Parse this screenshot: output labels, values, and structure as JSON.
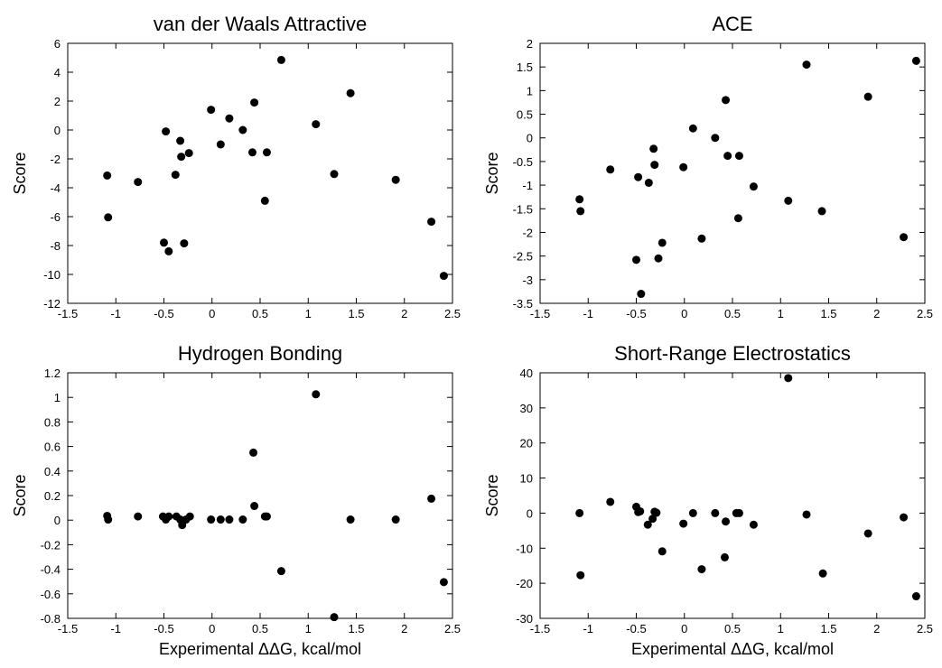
{
  "chart_data": [
    {
      "type": "scatter",
      "title": "van der Waals Attractive",
      "xlabel": "",
      "ylabel": "Score",
      "xlim": [
        -1.5,
        2.5
      ],
      "ylim": [
        -12,
        6
      ],
      "xticks": [
        "-1.5",
        "-1",
        "-0.5",
        "0",
        "0.5",
        "1",
        "1.5",
        "2",
        "2.5"
      ],
      "yticks": [
        "-12",
        "-10",
        "-8",
        "-6",
        "-4",
        "-2",
        "0",
        "2",
        "4",
        "6"
      ],
      "series": [
        {
          "x": [
            -1.09,
            -1.08,
            -0.77,
            -0.5,
            -0.48,
            -0.45,
            -0.38,
            -0.33,
            -0.32,
            -0.29,
            -0.24,
            -0.01,
            0.09,
            0.18,
            0.32,
            0.42,
            0.44,
            0.55,
            0.57,
            0.72,
            1.08,
            1.27,
            1.44,
            1.91,
            2.28,
            2.41
          ],
          "y": [
            -3.15,
            -6.05,
            -3.6,
            -7.8,
            -0.1,
            -8.4,
            -3.1,
            -0.75,
            -1.85,
            -7.85,
            -1.6,
            1.4,
            -1.0,
            0.8,
            0.0,
            -1.55,
            1.9,
            -4.9,
            -1.55,
            4.85,
            0.4,
            -3.05,
            2.55,
            -3.45,
            -6.35,
            -10.1
          ]
        }
      ]
    },
    {
      "type": "scatter",
      "title": "ACE",
      "xlabel": "",
      "ylabel": "Score",
      "xlim": [
        -1.5,
        2.5
      ],
      "ylim": [
        -3.5,
        2
      ],
      "xticks": [
        "-1.5",
        "-1",
        "-0.5",
        "0",
        "0.5",
        "1",
        "1.5",
        "2",
        "2.5"
      ],
      "yticks": [
        "-3.5",
        "-3",
        "-2.5",
        "-2",
        "-1.5",
        "-1",
        "-0.5",
        "0",
        "0.5",
        "1",
        "1.5",
        "2"
      ],
      "series": [
        {
          "x": [
            -1.09,
            -1.08,
            -0.77,
            -0.5,
            -0.48,
            -0.45,
            -0.37,
            -0.32,
            -0.31,
            -0.27,
            -0.23,
            -0.01,
            0.09,
            0.18,
            0.32,
            0.43,
            0.45,
            0.56,
            0.57,
            0.72,
            1.08,
            1.27,
            1.43,
            1.91,
            2.28,
            2.41
          ],
          "y": [
            -1.3,
            -1.55,
            -0.67,
            -2.58,
            -0.83,
            -3.3,
            -0.95,
            -0.23,
            -0.57,
            -2.55,
            -2.22,
            -0.62,
            0.2,
            -2.13,
            0.0,
            0.8,
            -0.38,
            -1.7,
            -0.38,
            -1.03,
            -1.33,
            1.55,
            -1.55,
            0.87,
            -2.1,
            1.63
          ]
        }
      ]
    },
    {
      "type": "scatter",
      "title": "Hydrogen Bonding",
      "xlabel": "Experimental ΔΔG, kcal/mol",
      "ylabel": "Score",
      "xlim": [
        -1.5,
        2.5
      ],
      "ylim": [
        -0.8,
        1.2
      ],
      "xticks": [
        "-1.5",
        "-1",
        "-0.5",
        "0",
        "0.5",
        "1",
        "1.5",
        "2",
        "2.5"
      ],
      "yticks": [
        "-0.8",
        "-0.6",
        "-0.4",
        "-0.2",
        "0",
        "0.2",
        "0.4",
        "0.6",
        "0.8",
        "1",
        "1.2"
      ],
      "series": [
        {
          "x": [
            -1.09,
            -1.08,
            -0.77,
            -0.51,
            -0.48,
            -0.45,
            -0.37,
            -0.33,
            -0.31,
            -0.27,
            -0.23,
            -0.01,
            0.09,
            0.18,
            0.32,
            0.43,
            0.44,
            0.55,
            0.57,
            0.72,
            1.08,
            1.27,
            1.44,
            1.91,
            2.28,
            2.41
          ],
          "y": [
            0.035,
            0.005,
            0.03,
            0.03,
            0.005,
            0.03,
            0.03,
            0.005,
            -0.04,
            0.005,
            0.03,
            0.005,
            0.005,
            0.005,
            0.005,
            0.55,
            0.115,
            0.03,
            0.03,
            -0.415,
            1.025,
            -0.79,
            0.005,
            0.005,
            0.175,
            -0.505
          ]
        }
      ]
    },
    {
      "type": "scatter",
      "title": "Short-Range Electrostatics",
      "xlabel": "Experimental ΔΔG, kcal/mol",
      "ylabel": "Score",
      "xlim": [
        -1.5,
        2.5
      ],
      "ylim": [
        -30,
        40
      ],
      "xticks": [
        "-1.5",
        "-1",
        "-0.5",
        "0",
        "0.5",
        "1",
        "1.5",
        "2",
        "2.5"
      ],
      "yticks": [
        "-30",
        "-20",
        "-10",
        "0",
        "10",
        "20",
        "30",
        "40"
      ],
      "series": [
        {
          "x": [
            -1.09,
            -1.08,
            -0.77,
            -0.5,
            -0.48,
            -0.46,
            -0.38,
            -0.33,
            -0.31,
            -0.29,
            -0.23,
            -0.01,
            0.09,
            0.18,
            0.32,
            0.42,
            0.43,
            0.54,
            0.57,
            0.72,
            1.08,
            1.27,
            1.44,
            1.91,
            2.28,
            2.41
          ],
          "y": [
            0.0,
            -17.7,
            3.2,
            1.8,
            0.3,
            0.5,
            -3.3,
            -1.6,
            0.4,
            0.1,
            -10.9,
            -3.0,
            0.0,
            -16.0,
            0.0,
            -12.6,
            -2.4,
            0.0,
            0.0,
            -3.3,
            38.5,
            -0.4,
            -17.2,
            -5.8,
            -1.2,
            -23.7
          ]
        }
      ]
    }
  ]
}
